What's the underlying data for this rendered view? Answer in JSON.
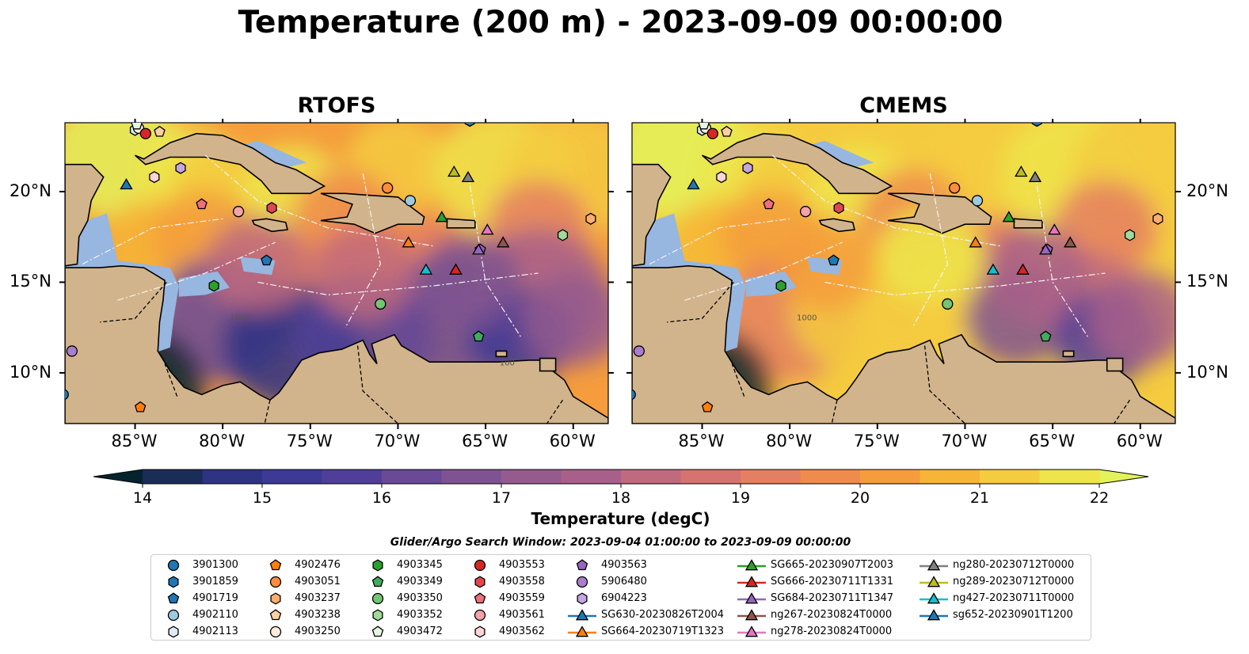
{
  "title": "Temperature (200 m) - 2023-09-09 00:00:00",
  "panels": [
    {
      "name": "RTOFS",
      "style": "warm-west"
    },
    {
      "name": "CMEMS",
      "style": "warm-east"
    }
  ],
  "lon_ticks": [
    "85°W",
    "80°W",
    "75°W",
    "70°W",
    "65°W",
    "60°W"
  ],
  "lat_ticks": [
    "20°N",
    "15°N",
    "10°N"
  ],
  "colorbar": {
    "label": "Temperature (degC)",
    "ticks": [
      "14",
      "15",
      "16",
      "17",
      "18",
      "19",
      "20",
      "21",
      "22"
    ],
    "colors": [
      "#04232f",
      "#1a2d57",
      "#2e3384",
      "#3d3a95",
      "#503f98",
      "#6a4a96",
      "#7f5391",
      "#955b8f",
      "#a8608a",
      "#c06a7f",
      "#d57371",
      "#e57f61",
      "#f08b4e",
      "#f59d3d",
      "#f6b537",
      "#f5cb3f",
      "#eee44b",
      "#e3f25a"
    ]
  },
  "contour_labels": [
    "1000",
    "100"
  ],
  "search_window": "Glider/Argo Search Window: 2023-09-04 01:00:00 to 2023-09-09 00:00:00",
  "legend": [
    {
      "label": "3901300",
      "marker": "circle",
      "color": "#1f77b4"
    },
    {
      "label": "3901859",
      "marker": "hexagon",
      "color": "#1f77b4"
    },
    {
      "label": "4901719",
      "marker": "pentagon",
      "color": "#1f77b4"
    },
    {
      "label": "4902110",
      "marker": "circle",
      "color": "#9ecae1"
    },
    {
      "label": "4902113",
      "marker": "hexagon",
      "color": "#deebf7"
    },
    {
      "label": "4902476",
      "marker": "pentagon",
      "color": "#ff7f0e"
    },
    {
      "label": "4903051",
      "marker": "circle",
      "color": "#fd8d3c"
    },
    {
      "label": "4903237",
      "marker": "hexagon",
      "color": "#fdae6b"
    },
    {
      "label": "4903238",
      "marker": "pentagon",
      "color": "#fdd0a2"
    },
    {
      "label": "4903250",
      "marker": "circle",
      "color": "#feedde"
    },
    {
      "label": "4903345",
      "marker": "hexagon",
      "color": "#2ca02c"
    },
    {
      "label": "4903349",
      "marker": "pentagon",
      "color": "#41ab5d"
    },
    {
      "label": "4903350",
      "marker": "circle",
      "color": "#74c476"
    },
    {
      "label": "4903352",
      "marker": "hexagon",
      "color": "#a1d99b"
    },
    {
      "label": "4903472",
      "marker": "pentagon",
      "color": "#e5f5e0"
    },
    {
      "label": "4903553",
      "marker": "circle",
      "color": "#d62728"
    },
    {
      "label": "4903558",
      "marker": "hexagon",
      "color": "#e0474c"
    },
    {
      "label": "4903559",
      "marker": "pentagon",
      "color": "#ef6f7c"
    },
    {
      "label": "4903561",
      "marker": "circle",
      "color": "#f4a3a8"
    },
    {
      "label": "4903562",
      "marker": "hexagon",
      "color": "#fcd5d8"
    },
    {
      "label": "4903563",
      "marker": "pentagon",
      "color": "#9467bd"
    },
    {
      "label": "5906480",
      "marker": "circle",
      "color": "#a87fcf"
    },
    {
      "label": "6904223",
      "marker": "hexagon",
      "color": "#c5a5e3"
    },
    {
      "label": "SG630-20230826T2004",
      "marker": "triangle",
      "color": "#1f77b4"
    },
    {
      "label": "SG664-20230719T1323",
      "marker": "triangle",
      "color": "#ff7f0e"
    },
    {
      "label": "SG665-20230907T2003",
      "marker": "triangle",
      "color": "#2ca02c"
    },
    {
      "label": "SG666-20230711T1331",
      "marker": "triangle",
      "color": "#d62728"
    },
    {
      "label": "SG684-20230711T1347",
      "marker": "triangle",
      "color": "#9467bd"
    },
    {
      "label": "ng267-20230824T0000",
      "marker": "triangle",
      "color": "#8c564b"
    },
    {
      "label": "ng278-20230824T0000",
      "marker": "triangle",
      "color": "#e377c2"
    },
    {
      "label": "ng280-20230712T0000",
      "marker": "triangle",
      "color": "#7f7f7f"
    },
    {
      "label": "ng289-20230712T0000",
      "marker": "triangle",
      "color": "#bcbd22"
    },
    {
      "label": "ng427-20230711T0000",
      "marker": "triangle",
      "color": "#17becf"
    },
    {
      "label": "sg652-20230901T1200",
      "marker": "triangle",
      "color": "#1f77b4"
    }
  ],
  "observations": [
    {
      "id": "3901300",
      "lon": -89.1,
      "lat": 8.8
    },
    {
      "id": "3901859",
      "lon": -65.9,
      "lat": 23.9
    },
    {
      "id": "4901719",
      "lon": -77.5,
      "lat": 16.2
    },
    {
      "id": "4902110",
      "lon": -69.3,
      "lat": 19.5
    },
    {
      "id": "4902113",
      "lon": -85.0,
      "lat": 23.4
    },
    {
      "id": "4902476",
      "lon": -84.7,
      "lat": 8.1
    },
    {
      "id": "4903051",
      "lon": -70.6,
      "lat": 20.2
    },
    {
      "id": "4903237",
      "lon": -59.0,
      "lat": 18.5
    },
    {
      "id": "4903238",
      "lon": -83.6,
      "lat": 23.3
    },
    {
      "id": "4903250",
      "lon": -84.8,
      "lat": 23.5
    },
    {
      "id": "4903345",
      "lon": -80.5,
      "lat": 14.8
    },
    {
      "id": "4903349",
      "lon": -65.4,
      "lat": 12.0
    },
    {
      "id": "4903350",
      "lon": -71.0,
      "lat": 13.8
    },
    {
      "id": "4903352",
      "lon": -60.6,
      "lat": 17.6
    },
    {
      "id": "4903472",
      "lon": -84.9,
      "lat": 23.7
    },
    {
      "id": "4903553",
      "lon": -84.4,
      "lat": 23.2
    },
    {
      "id": "4903558",
      "lon": -77.2,
      "lat": 19.1
    },
    {
      "id": "4903559",
      "lon": -81.2,
      "lat": 19.3
    },
    {
      "id": "4903561",
      "lon": -79.1,
      "lat": 18.9
    },
    {
      "id": "4903562",
      "lon": -83.9,
      "lat": 20.8
    },
    {
      "id": "4903563",
      "lon": -65.3,
      "lat": 16.8
    },
    {
      "id": "5906480",
      "lon": -88.6,
      "lat": 11.2
    },
    {
      "id": "6904223",
      "lon": -82.4,
      "lat": 21.3
    },
    {
      "id": "SG630-20230826T2004",
      "lon": -66.7,
      "lat": 15.7
    },
    {
      "id": "SG664-20230719T1323",
      "lon": -69.4,
      "lat": 17.2
    },
    {
      "id": "SG665-20230907T2003",
      "lon": -67.5,
      "lat": 18.6
    },
    {
      "id": "SG666-20230711T1331",
      "lon": -66.7,
      "lat": 15.7
    },
    {
      "id": "SG684-20230711T1347",
      "lon": -65.4,
      "lat": 16.8
    },
    {
      "id": "ng267-20230824T0000",
      "lon": -64.0,
      "lat": 17.2
    },
    {
      "id": "ng278-20230824T0000",
      "lon": -64.9,
      "lat": 17.9
    },
    {
      "id": "ng280-20230712T0000",
      "lon": -66.0,
      "lat": 20.8
    },
    {
      "id": "ng289-20230712T0000",
      "lon": -66.8,
      "lat": 21.1
    },
    {
      "id": "ng427-20230711T0000",
      "lon": -68.4,
      "lat": 15.7
    },
    {
      "id": "sg652-20230901T1200",
      "lon": -85.5,
      "lat": 20.4
    }
  ]
}
